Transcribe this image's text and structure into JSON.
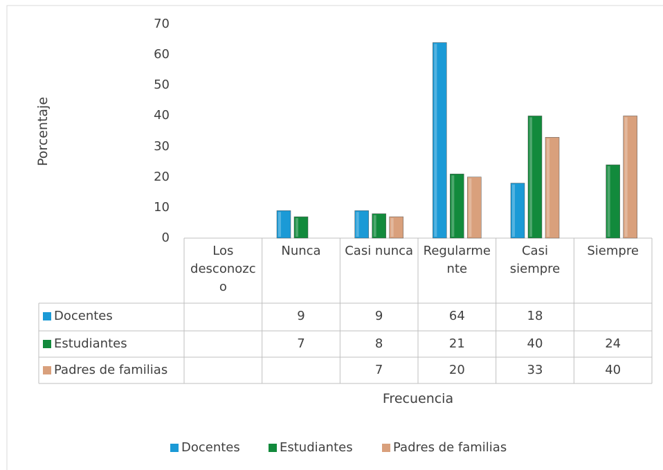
{
  "chart_data": {
    "type": "bar",
    "xlabel": "Frecuencia",
    "ylabel": "Porcentaje",
    "categories": [
      "Los desconozco",
      "Nunca",
      "Casi nunca",
      "Regularmente",
      "Casi siempre",
      "Siempre"
    ],
    "series": [
      {
        "name": "Docentes",
        "color": "#1b9ad6",
        "values": [
          null,
          9,
          9,
          64,
          18,
          null
        ]
      },
      {
        "name": "Estudiantes",
        "color": "#128a3c",
        "values": [
          null,
          7,
          8,
          21,
          40,
          24
        ]
      },
      {
        "name": "Padres de familias",
        "color": "#d9a07c",
        "values": [
          null,
          null,
          7,
          20,
          33,
          40
        ]
      }
    ],
    "ylim": [
      0,
      70
    ],
    "yticks": [
      0,
      10,
      20,
      30,
      40,
      50,
      60,
      70
    ],
    "legend": "bottom",
    "data_table": true
  }
}
